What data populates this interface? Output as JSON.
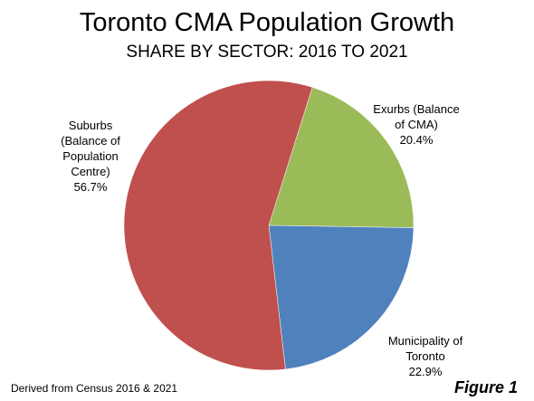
{
  "chart_data": {
    "type": "pie",
    "title": "Toronto CMA Population Growth",
    "subtitle": "SHARE BY SECTOR: 2016 TO 2021",
    "slices": [
      {
        "label_lines": [
          "Exurbs (Balance",
          "of CMA)"
        ],
        "value_label": "20.4%",
        "value": 20.4,
        "color": "#9BBB59"
      },
      {
        "label_lines": [
          "Municipality of",
          "Toronto"
        ],
        "value_label": "22.9%",
        "value": 22.9,
        "color": "#4F81BD"
      },
      {
        "label_lines": [
          "Suburbs",
          "(Balance of",
          "Population",
          "Centre)"
        ],
        "value_label": "56.7%",
        "value": 56.7,
        "color": "#C0504D"
      }
    ],
    "legend": "none"
  },
  "footer": {
    "source": "Derived from Census 2016 & 2021",
    "figure": "Figure 1"
  }
}
